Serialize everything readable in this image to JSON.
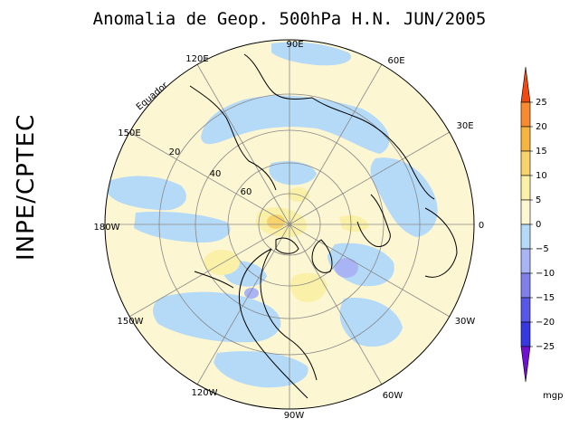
{
  "title": "Anomalia de Geop. 500hPa H.N. JUN/2005",
  "side_label": "INPE/CPTEC",
  "longitude_labels": {
    "l90e": "90E",
    "l60e": "60E",
    "l30e": "30E",
    "l0": "0",
    "l30w": "30W",
    "l60w": "60W",
    "l90w": "90W",
    "l120w": "120W",
    "l150w": "150W",
    "l180w": "180W",
    "l150e": "150E",
    "l120e": "120E"
  },
  "latitude_labels": {
    "l20": "20",
    "l40": "40",
    "l60": "60"
  },
  "equator_label": "Equador",
  "colorbar": {
    "units": "mgp",
    "ticks": [
      "25",
      "20",
      "15",
      "10",
      "5",
      "0",
      "−5",
      "−10",
      "−15",
      "−20",
      "−25"
    ],
    "colors": [
      "#f04a12",
      "#f88a30",
      "#f5b540",
      "#f8d36c",
      "#faf0a8",
      "#fdf6d2",
      "#b4daf8",
      "#a8b4f4",
      "#8080ec",
      "#5858e8",
      "#3838e0",
      "#7010d0"
    ]
  }
}
